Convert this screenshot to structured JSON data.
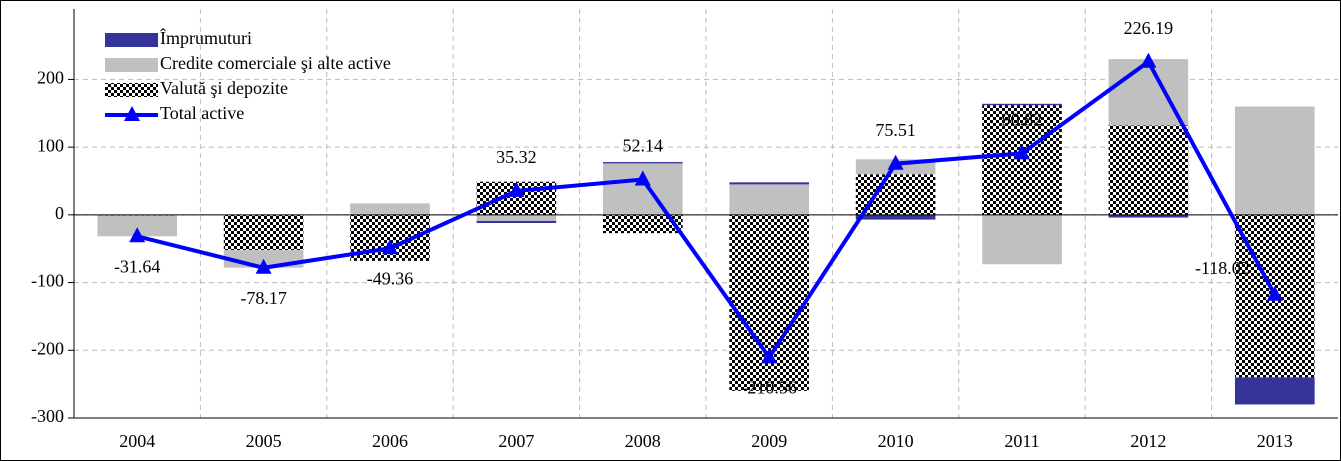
{
  "chart_data": {
    "type": "bar",
    "categories": [
      "2004",
      "2005",
      "2006",
      "2007",
      "2008",
      "2009",
      "2010",
      "2011",
      "2012",
      "2013"
    ],
    "series": [
      {
        "name": "Valută şi depozite",
        "color": "#000000",
        "pattern": "checker",
        "values": [
          -1,
          -52,
          -68,
          49,
          -27,
          -260,
          60,
          162,
          132,
          -240
        ]
      },
      {
        "name": "Credite comerciale şi alte active",
        "color": "#c0c0c0",
        "values": [
          -30.6,
          -26,
          17,
          -9,
          76,
          45,
          22,
          -73,
          98,
          160
        ]
      },
      {
        "name": "Împrumuturi",
        "color": "#333399",
        "values": [
          0,
          0,
          0,
          -3,
          2,
          3,
          -7,
          2,
          -4,
          -40
        ]
      },
      {
        "name": "Total active",
        "type": "line",
        "color": "#0000ff",
        "values": [
          -31.64,
          -78.17,
          -49.36,
          35.32,
          52.14,
          -210.56,
          75.51,
          90.82,
          226.19,
          -118.02
        ]
      }
    ],
    "legend_order": [
      2,
      1,
      0,
      3
    ],
    "ylim": [
      -300,
      304
    ],
    "yticks": [
      -300,
      -200,
      -100,
      0,
      100,
      200
    ],
    "grid": true
  }
}
